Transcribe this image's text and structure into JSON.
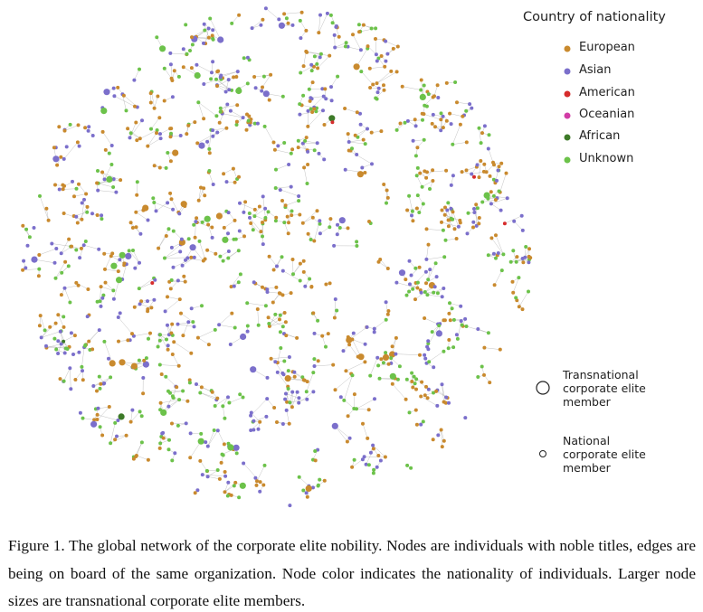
{
  "legend": {
    "title": "Country of nationality",
    "items": [
      {
        "label": "European",
        "color": "#c98a2e"
      },
      {
        "label": "Asian",
        "color": "#7b6fcb"
      },
      {
        "label": "American",
        "color": "#d62c2c"
      },
      {
        "label": "Oceanian",
        "color": "#d23ca6"
      },
      {
        "label": "African",
        "color": "#3d7a28"
      },
      {
        "label": "Unknown",
        "color": "#6cc24a"
      }
    ]
  },
  "size_legend": {
    "large": "Transnational corporate elite member",
    "small": "National corporate elite member"
  },
  "caption": "Figure 1. The global network of the corporate elite nobility. Nodes are individuals with noble titles, edges are being on board of the same organization. Node color indicates the nationality of individuals. Larger node sizes are transnational corporate elite members."
}
